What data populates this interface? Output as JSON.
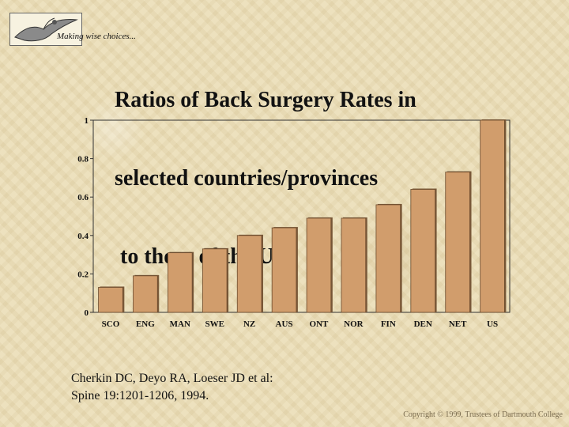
{
  "header": {
    "tagline": "Making wise choices...",
    "logo_icon": "bird-icon",
    "title_lines": [
      "Ratios of Back Surgery Rates in",
      "selected countries/provinces",
      " to those of the US."
    ]
  },
  "chart_data": {
    "type": "bar",
    "title": "Ratios of Back Surgery Rates in selected countries/provinces to those of the US.",
    "xlabel": "",
    "ylabel": "",
    "categories": [
      "SCO",
      "ENG",
      "MAN",
      "SWE",
      "NZ",
      "AUS",
      "ONT",
      "NOR",
      "FIN",
      "DEN",
      "NET",
      "US"
    ],
    "values": [
      0.13,
      0.19,
      0.31,
      0.33,
      0.4,
      0.44,
      0.49,
      0.49,
      0.56,
      0.64,
      0.73,
      1.0
    ],
    "ylim": [
      0,
      1
    ],
    "yticks": [
      "0",
      "0.2",
      "0.4",
      "0.6",
      "0.8",
      "1"
    ],
    "grid": false,
    "bar_color": "#d19d6c",
    "bar_shadow_color": "#7a5a3a"
  },
  "citation": {
    "line1": "Cherkin DC, Deyo RA, Loeser JD et al:",
    "line2": "Spine 19:1201-1206, 1994."
  },
  "footer": {
    "copyright": "Copyright © 1999, Trustees of Dartmouth College"
  }
}
